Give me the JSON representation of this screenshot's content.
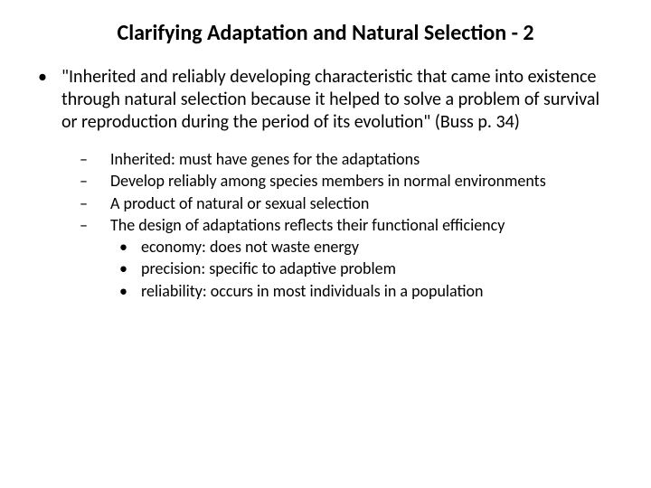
{
  "title": "Clarifying Adaptation and Natural Selection - 2",
  "main_quote": "\"Inherited and reliably developing characteristic that came into existence through natural selection because it helped to solve a problem of survival or reproduction during the period of its evolution\" (Buss p. 34)",
  "sub_points": [
    "Inherited: must have genes for the adaptations",
    "Develop reliably among species members in normal environments",
    "A product of natural or sexual selection",
    "The design of adaptations reflects their functional efficiency"
  ],
  "design_points": [
    "economy: does not waste energy",
    "precision: specific to adaptive problem",
    "reliability: occurs in most individuals in a population"
  ],
  "style": {
    "background_color": "#ffffff",
    "text_color": "#000000",
    "title_fontsize": 24,
    "level1_fontsize": 20,
    "level2_fontsize": 18,
    "level3_fontsize": 18,
    "font_family": "Calibri, Arial, sans-serif",
    "bullets": {
      "level1": "•",
      "level2": "–",
      "level3": "•"
    }
  }
}
